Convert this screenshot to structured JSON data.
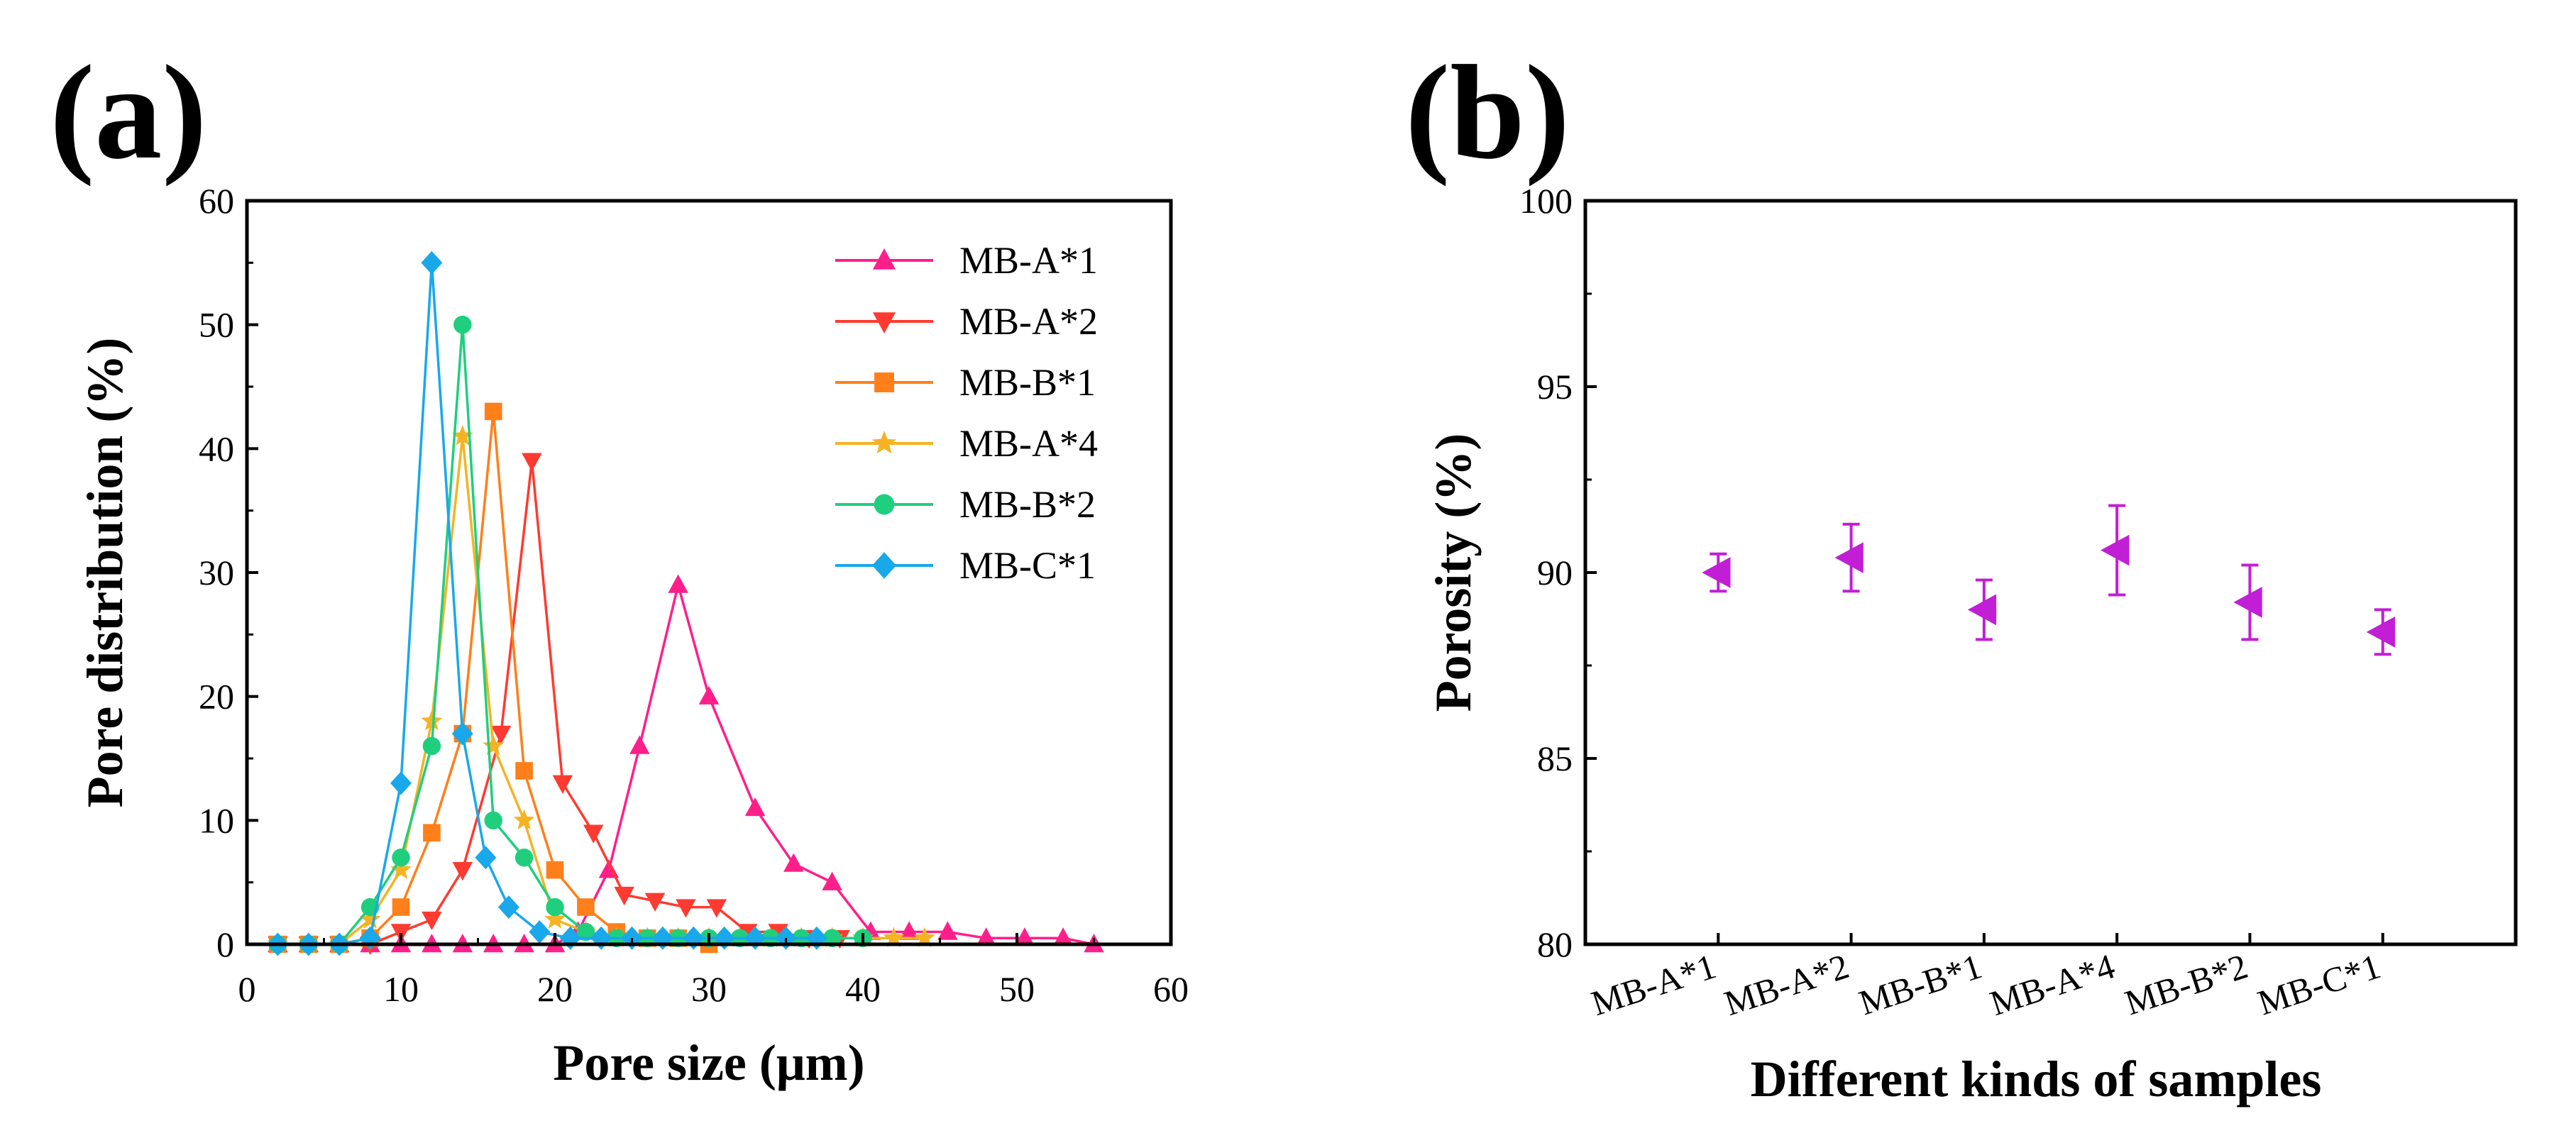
{
  "panels": {
    "a": "(a)",
    "b": "(b)"
  },
  "chart_data": [
    {
      "type": "line",
      "panel": "(a)",
      "xlabel": "Pore size (μm)",
      "ylabel": "Pore distribution (%)",
      "xlim": [
        0,
        60
      ],
      "ylim": [
        0,
        60
      ],
      "xticks": [
        "0",
        "10",
        "20",
        "30",
        "40",
        "50",
        "60"
      ],
      "yticks": [
        "0",
        "10",
        "20",
        "30",
        "40",
        "50",
        "60"
      ],
      "legend_position": "top-right",
      "series": [
        {
          "name": "MB-A*1",
          "color": "#ff1f8a",
          "marker": "triangle-up",
          "x": [
            2,
            4,
            6,
            8,
            10,
            12,
            14,
            16,
            18,
            20,
            21.5,
            23.5,
            25.5,
            28,
            30,
            33,
            35.5,
            38,
            40.5,
            43,
            45.5,
            48,
            50.5,
            53,
            55
          ],
          "y": [
            0,
            0,
            0,
            0,
            0,
            0,
            0,
            0,
            0,
            0,
            1,
            6,
            16,
            29,
            20,
            11,
            6.5,
            5,
            1,
            1,
            1,
            0.5,
            0.5,
            0.5,
            0
          ]
        },
        {
          "name": "MB-A*2",
          "color": "#ff3a30",
          "marker": "triangle-down",
          "x": [
            2,
            4,
            6,
            8,
            10,
            12,
            14,
            16.5,
            18.5,
            20.5,
            22.5,
            24.5,
            26.5,
            28.5,
            30.5,
            32.5,
            34.5,
            36.5,
            38.5
          ],
          "y": [
            0,
            0,
            0,
            0,
            1,
            2,
            6,
            17,
            39,
            13,
            9,
            4,
            3.5,
            3,
            3,
            1,
            1,
            0.5,
            0.5
          ]
        },
        {
          "name": "MB-B*1",
          "color": "#ff7f1a",
          "marker": "square",
          "x": [
            2,
            4,
            6,
            8,
            10,
            12,
            14,
            16,
            18,
            20,
            22,
            24,
            26,
            28,
            30
          ],
          "y": [
            0,
            0,
            0,
            0.5,
            3,
            9,
            17,
            43,
            14,
            6,
            3,
            1,
            0.5,
            0.5,
            0
          ]
        },
        {
          "name": "MB-A*4",
          "color": "#f5b324",
          "marker": "star",
          "x": [
            2,
            4,
            6,
            8,
            10,
            12,
            14,
            16,
            18,
            20,
            22,
            24,
            26,
            28,
            30,
            32,
            34,
            36,
            38,
            40,
            42,
            44
          ],
          "y": [
            0,
            0,
            0,
            2,
            6,
            18,
            41,
            16,
            10,
            2,
            1,
            0.5,
            0.5,
            0.5,
            0.5,
            0.5,
            0.5,
            0.5,
            0.5,
            0.5,
            0.5,
            0.5
          ]
        },
        {
          "name": "MB-B*2",
          "color": "#1fcf7e",
          "marker": "circle",
          "x": [
            2,
            4,
            6,
            8,
            10,
            12,
            14,
            16,
            18,
            20,
            22,
            24,
            26,
            28,
            30,
            32,
            34,
            36,
            38,
            40
          ],
          "y": [
            0,
            0,
            0,
            3,
            7,
            16,
            50,
            10,
            7,
            3,
            1,
            0.5,
            0.5,
            0.5,
            0.5,
            0.5,
            0.5,
            0.5,
            0.5,
            0.5
          ]
        },
        {
          "name": "MB-C*1",
          "color": "#19a8ea",
          "marker": "diamond",
          "x": [
            2,
            4,
            6,
            8,
            10,
            12,
            14,
            15.5,
            17,
            19,
            21,
            23,
            25,
            27,
            29,
            31,
            33,
            35,
            37
          ],
          "y": [
            0,
            0,
            0,
            0.5,
            13,
            55,
            17,
            7,
            3,
            1,
            0.5,
            0.5,
            0.5,
            0.5,
            0.5,
            0.5,
            0.5,
            0.5,
            0.5
          ]
        }
      ]
    },
    {
      "type": "scatter",
      "panel": "(b)",
      "xlabel": "Different kinds of samples",
      "ylabel": "Porosity (%)",
      "ylim": [
        80,
        100
      ],
      "yticks": [
        "80",
        "85",
        "90",
        "95",
        "100"
      ],
      "categories": [
        "MB-A*1",
        "MB-A*2",
        "MB-B*1",
        "MB-A*4",
        "MB-B*2",
        "MB-C*1"
      ],
      "values": [
        90.0,
        90.4,
        89.0,
        90.6,
        89.2,
        88.4
      ],
      "errors": [
        0.5,
        0.9,
        0.8,
        1.2,
        1.0,
        0.6
      ],
      "color": "#c21ed6",
      "marker": "triangle-left"
    }
  ]
}
